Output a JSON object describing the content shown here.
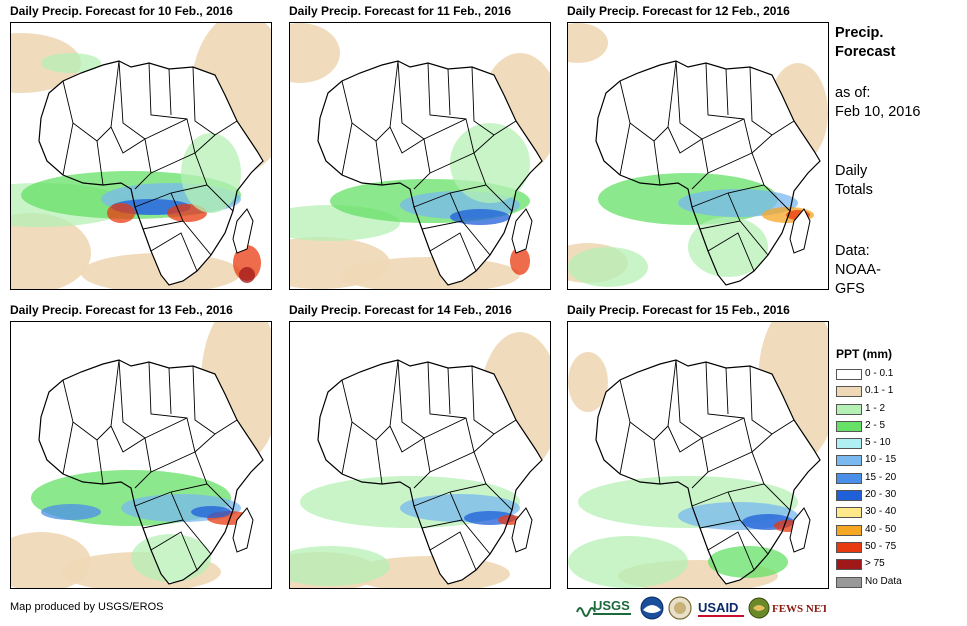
{
  "panels": [
    {
      "title": "Daily Precip. Forecast for 10 Feb., 2016"
    },
    {
      "title": "Daily Precip. Forecast for 11 Feb., 2016"
    },
    {
      "title": "Daily Precip. Forecast for 12 Feb., 2016"
    },
    {
      "title": "Daily Precip. Forecast for 13 Feb., 2016"
    },
    {
      "title": "Daily Precip. Forecast for 14 Feb., 2016"
    },
    {
      "title": "Daily Precip. Forecast for 15 Feb., 2016"
    }
  ],
  "side": {
    "title_line1": "Precip.",
    "title_line2": "Forecast",
    "asof_line1": "as of:",
    "asof_line2": "Feb 10, 2016",
    "daily_line1": "Daily",
    "daily_line2": "Totals",
    "data_line1": "Data:",
    "data_line2": "NOAA-",
    "data_line3": "GFS"
  },
  "legend": {
    "title": "PPT (mm)",
    "items": [
      {
        "label": "0 - 0.1",
        "color": "#ffffff"
      },
      {
        "label": "0.1 - 1",
        "color": "#eed8b5"
      },
      {
        "label": "1 - 2",
        "color": "#b5f0b5"
      },
      {
        "label": "2 - 5",
        "color": "#66e066"
      },
      {
        "label": "5 - 10",
        "color": "#b0f0f5"
      },
      {
        "label": "10 - 15",
        "color": "#7ab8f0"
      },
      {
        "label": "15 - 20",
        "color": "#4a8fe8"
      },
      {
        "label": "20 - 30",
        "color": "#1f5fd8"
      },
      {
        "label": "30 - 40",
        "color": "#ffe98a"
      },
      {
        "label": "40 - 50",
        "color": "#f5a623"
      },
      {
        "label": "50 - 75",
        "color": "#e83a10"
      },
      {
        "label": "> 75",
        "color": "#a01818"
      },
      {
        "label": "No Data",
        "color": "#999999"
      }
    ]
  },
  "credit": "Map produced by USGS/EROS",
  "logos": {
    "usgs": "USGS",
    "usaid": "USAID",
    "fewsnet": "FEWS NET"
  }
}
